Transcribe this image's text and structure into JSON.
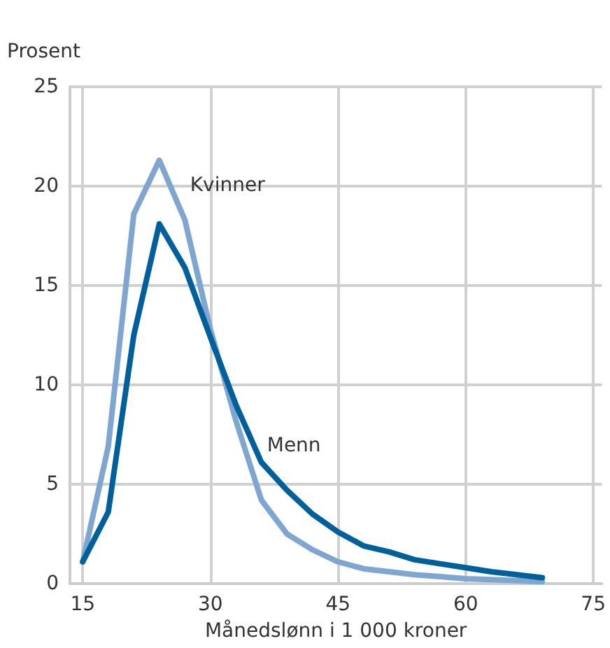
{
  "chart_data": {
    "type": "line",
    "xlabel": "Månedslønn i 1 000 kroner",
    "ylabel": "Prosent",
    "x": [
      15,
      18,
      21,
      24,
      27,
      30,
      33,
      36,
      39,
      42,
      45,
      48,
      51,
      54,
      57,
      60,
      63,
      66,
      69
    ],
    "series": [
      {
        "name": "Kvinner",
        "color": "#7ea6d0",
        "values": [
          1.1,
          6.9,
          18.6,
          21.3,
          18.3,
          12.8,
          8.2,
          4.2,
          2.5,
          1.7,
          1.1,
          0.75,
          0.6,
          0.45,
          0.35,
          0.25,
          0.2,
          0.15,
          0.1
        ]
      },
      {
        "name": "Menn",
        "color": "#00609c",
        "values": [
          1.1,
          3.6,
          12.5,
          18.1,
          15.9,
          12.4,
          9.0,
          6.1,
          4.7,
          3.5,
          2.6,
          1.9,
          1.6,
          1.2,
          1.0,
          0.8,
          0.6,
          0.45,
          0.3
        ]
      }
    ],
    "xlim": [
      13.5,
      76
    ],
    "xticks": [
      15,
      30,
      45,
      60,
      75
    ],
    "ylim": [
      0,
      25
    ],
    "yticks": [
      0,
      5,
      10,
      15,
      20,
      25
    ],
    "grid": true,
    "legend": false,
    "marker": "none",
    "line_style": "solid"
  }
}
